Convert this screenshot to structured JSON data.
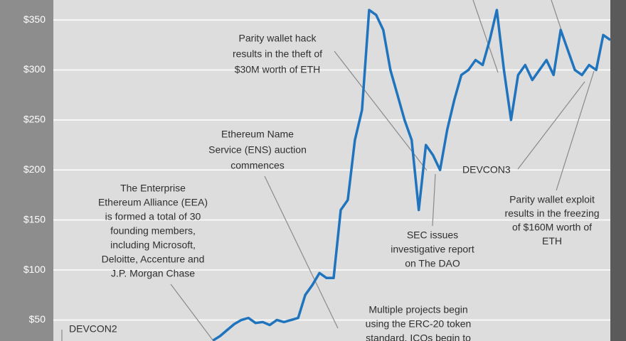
{
  "chart_data": {
    "type": "line",
    "categories": [
      null,
      null,
      null,
      null,
      null,
      null,
      null,
      null,
      null,
      null,
      null,
      null,
      null,
      null,
      null,
      null,
      null,
      null,
      null,
      null,
      null,
      null,
      null,
      null,
      null,
      null,
      null,
      null,
      null,
      null,
      null,
      null,
      null,
      null,
      null,
      null,
      null,
      null,
      null,
      null,
      null,
      null,
      null,
      null,
      null,
      null,
      null,
      null,
      null,
      null,
      null,
      null,
      null,
      null,
      null,
      null,
      null,
      null,
      null,
      null,
      null,
      null,
      null,
      null,
      null,
      null,
      null,
      null,
      null,
      null,
      null,
      null,
      null,
      null,
      null,
      null,
      null,
      null,
      null
    ],
    "values": [
      null,
      null,
      null,
      null,
      null,
      null,
      null,
      null,
      null,
      null,
      null,
      null,
      null,
      null,
      null,
      null,
      null,
      null,
      null,
      null,
      null,
      null,
      29.5,
      34,
      40,
      46,
      50,
      52,
      47,
      48,
      45,
      50,
      48,
      50,
      52,
      75,
      85,
      97,
      92,
      92,
      160,
      170,
      230,
      260,
      360,
      355,
      340,
      300,
      275,
      250,
      230,
      160,
      225,
      215,
      200,
      240,
      270,
      295,
      300,
      310,
      305,
      330,
      360,
      300,
      250,
      295,
      305,
      290,
      300,
      310,
      295,
      340,
      320,
      300,
      295,
      305,
      300,
      335,
      330
    ],
    "color": "#1f74bd",
    "ylim": [
      29,
      370
    ],
    "yticks": [
      {
        "value": 50,
        "label": "$50"
      },
      {
        "value": 100,
        "label": "$100"
      },
      {
        "value": 150,
        "label": "$150"
      },
      {
        "value": 200,
        "label": "$200"
      },
      {
        "value": 250,
        "label": "$250"
      },
      {
        "value": 300,
        "label": "$300"
      },
      {
        "value": 350,
        "label": "$350"
      }
    ],
    "grid": true,
    "annotations": [
      {
        "lines": [
          "Parity wallet hack",
          "results in the theft of",
          "$30M worth of ETH"
        ]
      },
      {
        "lines": [
          "Ethereum Name",
          "Service (ENS) auction",
          "commences"
        ]
      },
      {
        "lines": [
          "The Enterprise",
          "Ethereum Alliance (EEA)",
          "is formed a total of 30",
          "founding members,",
          "including Microsoft,",
          "Deloitte, Accenture and",
          "J.P. Morgan Chase"
        ]
      },
      {
        "lines": [
          "SEC issues",
          "investigative report",
          "on The DAO"
        ]
      },
      {
        "lines": [
          "DEVCON3"
        ]
      },
      {
        "lines": [
          "Parity wallet exploit",
          "results in the freezing",
          "of $160M worth of",
          "ETH"
        ]
      },
      {
        "lines": [
          "DEVCON2"
        ]
      },
      {
        "lines": [
          "Multiple projects begin",
          "using the ERC-20 token",
          "standard, ICOs begin to"
        ]
      }
    ]
  }
}
